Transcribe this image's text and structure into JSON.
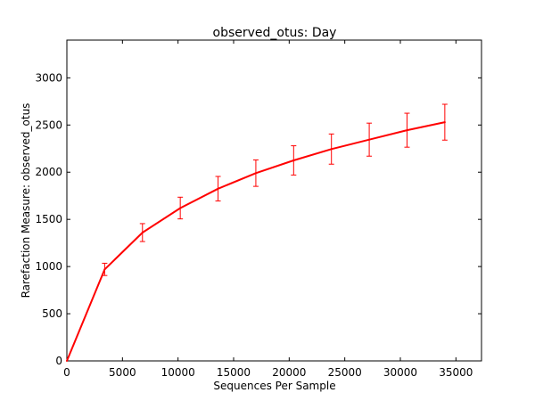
{
  "chart_data": {
    "type": "line",
    "title": "observed_otus: Day",
    "xlabel": "Sequences Per Sample",
    "ylabel": "Rarefaction Measure: observed_otus",
    "xlim": [
      0,
      37300
    ],
    "ylim": [
      0,
      3400
    ],
    "xticks": [
      0,
      5000,
      10000,
      15000,
      20000,
      25000,
      30000,
      35000
    ],
    "yticks": [
      0,
      500,
      1000,
      1500,
      2000,
      2500,
      3000
    ],
    "grid": false,
    "legend": "none",
    "series": [
      {
        "color": "#ff0000",
        "points": [
          {
            "x": 0,
            "y": 0,
            "err": 0
          },
          {
            "x": 3400,
            "y": 970,
            "err": 65
          },
          {
            "x": 6800,
            "y": 1360,
            "err": 95
          },
          {
            "x": 10200,
            "y": 1620,
            "err": 115
          },
          {
            "x": 13600,
            "y": 1825,
            "err": 130
          },
          {
            "x": 17000,
            "y": 1990,
            "err": 140
          },
          {
            "x": 20400,
            "y": 2125,
            "err": 155
          },
          {
            "x": 23800,
            "y": 2245,
            "err": 160
          },
          {
            "x": 27200,
            "y": 2345,
            "err": 175
          },
          {
            "x": 30600,
            "y": 2445,
            "err": 180
          },
          {
            "x": 34000,
            "y": 2530,
            "err": 190
          }
        ]
      }
    ]
  }
}
